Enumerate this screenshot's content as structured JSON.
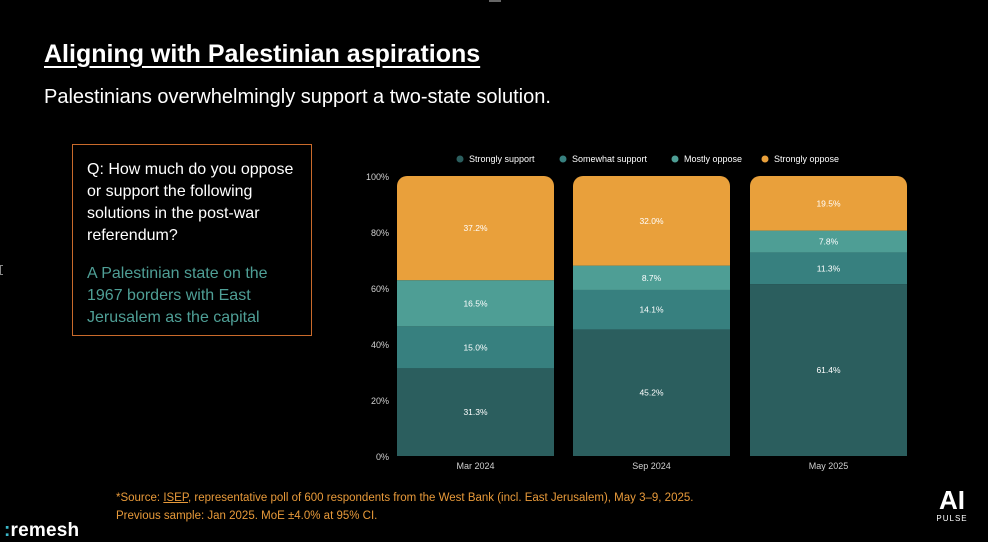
{
  "header": {
    "title": "Aligning with Palestinian aspirations",
    "subtitle": "Palestinians overwhelmingly support a two-state solution."
  },
  "question_box": {
    "question": "Q: How much do you oppose or support the following solutions in the post-war referendum?",
    "option": "A Palestinian state on the 1967 borders with East Jerusalem as the capital"
  },
  "source": {
    "prefix": "*Source: ",
    "link": "ISEP",
    "line1_rest": ", representative poll of 600 respondents from the West Bank (incl. East Jerusalem), May 3–9, 2025.",
    "line2": "Previous sample: Jan 2025. MoE ±4.0% at 95% CI."
  },
  "brand": {
    "dots": ":",
    "name": "remesh"
  },
  "badge": {
    "ai": "AI",
    "pulse": "PULSE"
  },
  "colors": {
    "strongly_support": "#2b5e5e",
    "somewhat_support": "#37807f",
    "mostly_oppose": "#4e9e95",
    "strongly_oppose": "#e9a03b",
    "axis_text": "#d0d0d0"
  },
  "chart_data": {
    "type": "bar",
    "stacked": true,
    "categories": [
      "Mar 2024",
      "Sep 2024",
      "May 2025"
    ],
    "series": [
      {
        "name": "Strongly support",
        "values": [
          31.3,
          45.2,
          61.4
        ],
        "labels": [
          "31.3%",
          "45.2%",
          "61.4%"
        ],
        "color": "#2b5e5e"
      },
      {
        "name": "Somewhat support",
        "values": [
          15.0,
          14.1,
          11.3
        ],
        "labels": [
          "15.0%",
          "14.1%",
          "11.3%"
        ],
        "color": "#37807f"
      },
      {
        "name": "Mostly oppose",
        "values": [
          16.5,
          8.7,
          7.8
        ],
        "labels": [
          "16.5%",
          "8.7%",
          "7.8%"
        ],
        "color": "#4e9e95"
      },
      {
        "name": "Strongly oppose",
        "values": [
          37.2,
          32.0,
          19.5
        ],
        "labels": [
          "37.2%",
          "32.0%",
          "19.5%"
        ],
        "color": "#e9a03b"
      }
    ],
    "yticks": [
      "0%",
      "20%",
      "40%",
      "60%",
      "80%",
      "100%"
    ],
    "ylim": [
      0,
      100
    ],
    "legend_position": "top",
    "grid": false
  }
}
